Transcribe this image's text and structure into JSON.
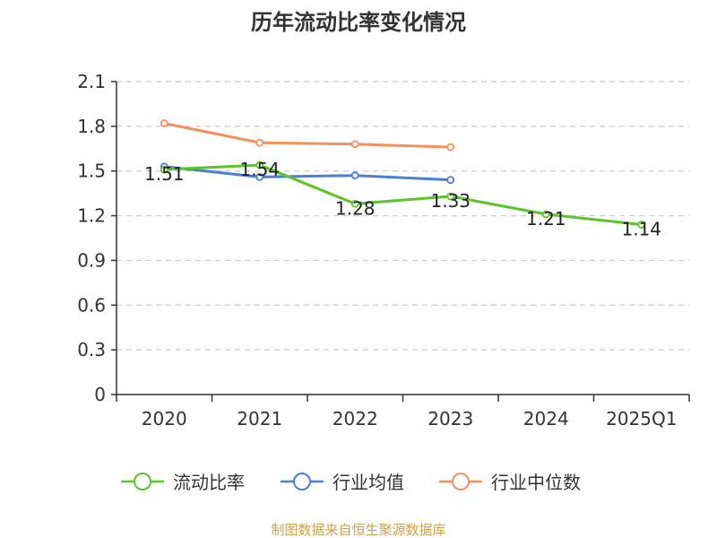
{
  "chart_data": {
    "type": "line",
    "title": "历年流动比率变化情况",
    "categories": [
      "2020",
      "2021",
      "2022",
      "2023",
      "2024",
      "2025Q1"
    ],
    "ylim": [
      0,
      2.1
    ],
    "yticks": [
      "0",
      "0.3",
      "0.6",
      "0.9",
      "1.2",
      "1.5",
      "1.8",
      "2.1"
    ],
    "grid": true,
    "legend_position": "bottom",
    "series": [
      {
        "name": "流动比率",
        "color": "#5bc42b",
        "values": [
          1.51,
          1.54,
          1.28,
          1.33,
          1.21,
          1.14
        ],
        "labels": [
          "1.51",
          "1.54",
          "1.28",
          "1.33",
          "1.21",
          "1.14"
        ]
      },
      {
        "name": "行业均值",
        "color": "#4a7fd4",
        "values": [
          1.53,
          1.46,
          1.47,
          1.44,
          null,
          null
        ]
      },
      {
        "name": "行业中位数",
        "color": "#f6905a",
        "values": [
          1.82,
          1.69,
          1.68,
          1.66,
          null,
          null
        ]
      }
    ]
  },
  "source": "制图数据来自恒生聚源数据库"
}
